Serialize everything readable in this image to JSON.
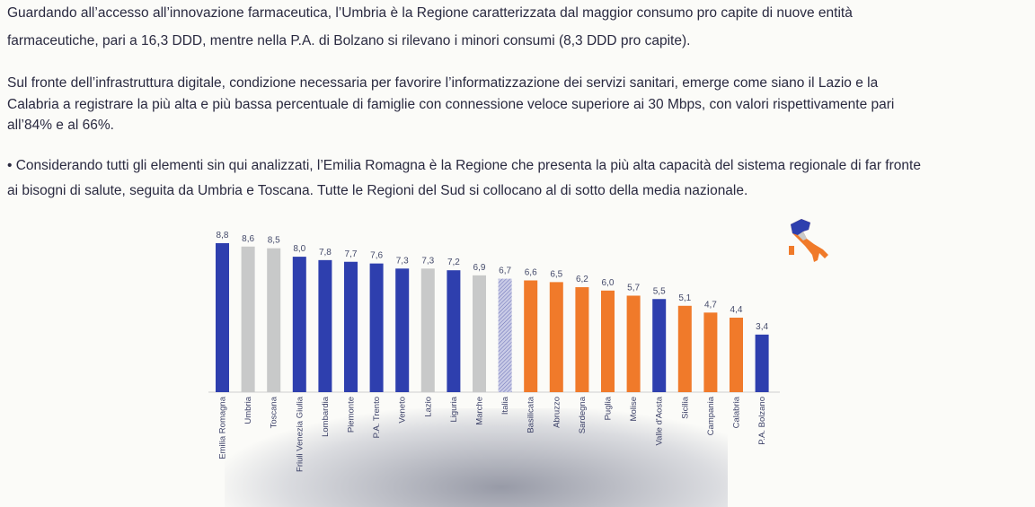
{
  "paragraphs": [
    {
      "lines": [
        "Guardando all’accesso all’innovazione farmaceutica, l’Umbria è la Regione caratterizzata dal maggior consumo pro capite di nuove entità",
        "farmaceutiche, pari a 16,3 DDD, mentre nella P.A. di Bolzano si rilevano i minori consumi (8,3 DDD pro capite)."
      ]
    },
    {
      "lines": [
        "Sul fronte dell’infrastruttura digitale, condizione necessaria per favorire l’informatizzazione dei servizi sanitari, emerge come siano il Lazio e la",
        "Calabria a registrare la più alta e più bassa percentuale di famiglie con connessione veloce superiore ai 30 Mbps, con valori rispettivamente pari",
        "all’84% e al 66%."
      ]
    },
    {
      "lines": [
        "• Considerando tutti gli elementi sin qui analizzati, l’Emilia Romagna è la Regione che presenta la più alta capacità del sistema regionale di far fronte",
        "ai bisogni di salute, seguita da Umbria e Toscana. Tutte le Regioni del Sud si collocano al di sotto della media nazionale."
      ]
    }
  ],
  "colors": {
    "north": "#2e3fae",
    "center": "#c8c9c9",
    "south": "#f07a2a",
    "italy": "#a8acd8"
  },
  "chart_data": {
    "type": "bar",
    "title": "",
    "xlabel": "",
    "ylabel": "",
    "ylim": [
      0,
      9
    ],
    "categories": [
      "Emilia Romagna",
      "Umbria",
      "Toscana",
      "Friuli Venezia Giulia",
      "Lombardia",
      "Piemonte",
      "P.A. Trento",
      "Veneto",
      "Lazio",
      "Liguria",
      "Marche",
      "Italia",
      "Basilicata",
      "Abruzzo",
      "Sardegna",
      "Puglia",
      "Molise",
      "Valle d'Aosta",
      "Sicilia",
      "Campania",
      "Calabria",
      "P.A. Bolzano"
    ],
    "values": [
      8.8,
      8.6,
      8.5,
      8.0,
      7.8,
      7.7,
      7.6,
      7.3,
      7.3,
      7.2,
      6.9,
      6.7,
      6.6,
      6.5,
      6.2,
      6.0,
      5.7,
      5.5,
      5.1,
      4.7,
      4.4,
      3.4
    ],
    "labels": [
      "8,8",
      "8,6",
      "8,5",
      "8,0",
      "7,8",
      "7,7",
      "7,6",
      "7,3",
      "7,3",
      "7,2",
      "6,9",
      "6,7",
      "6,6",
      "6,5",
      "6,2",
      "6,0",
      "5,7",
      "5,5",
      "5,1",
      "4,7",
      "4,4",
      "3,4"
    ],
    "groups": [
      "north",
      "center",
      "center",
      "north",
      "north",
      "north",
      "north",
      "north",
      "center",
      "north",
      "center",
      "italy",
      "south",
      "south",
      "south",
      "south",
      "south",
      "north",
      "south",
      "south",
      "south",
      "north"
    ]
  }
}
